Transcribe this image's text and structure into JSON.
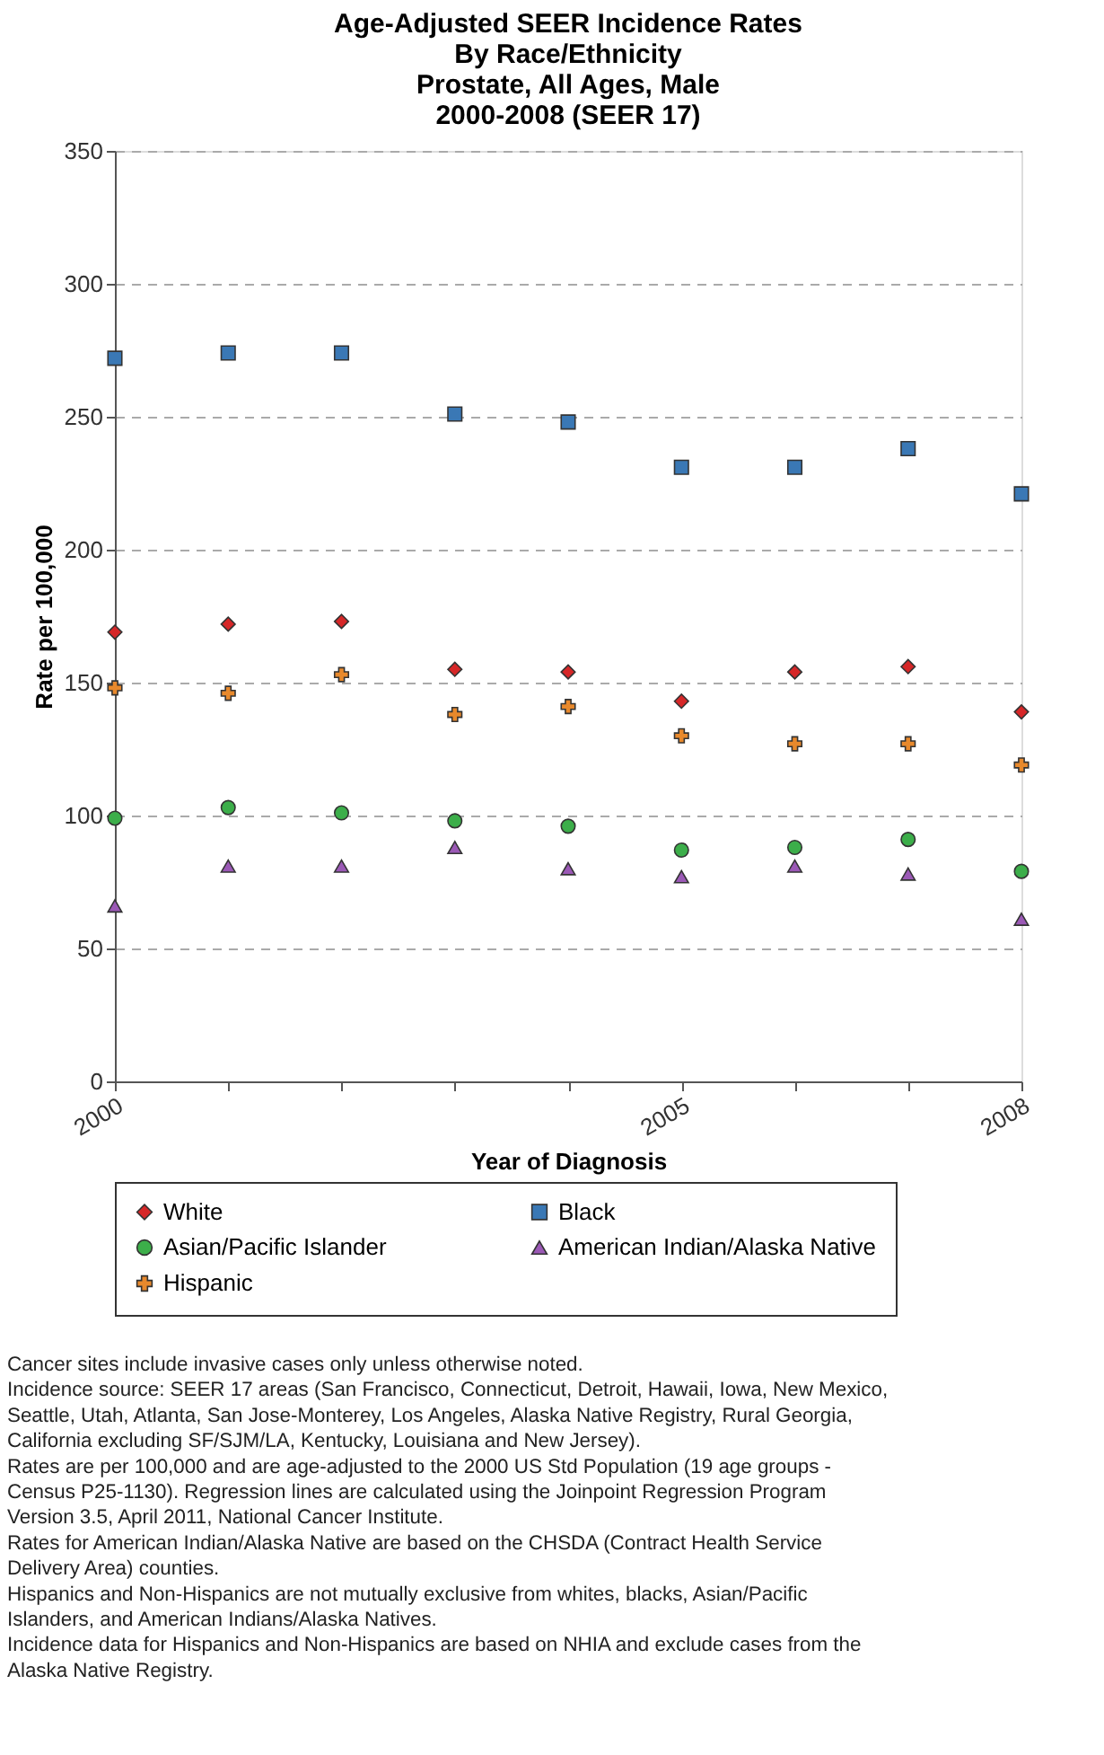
{
  "chart_data": {
    "type": "scatter",
    "title": "Age-Adjusted SEER Incidence Rates\nBy Race/Ethnicity\nProstate, All Ages, Male\n2000-2008  (SEER 17)",
    "xlabel": "Year of Diagnosis",
    "ylabel": "Rate per 100,000",
    "x": [
      2000,
      2001,
      2002,
      2003,
      2004,
      2005,
      2006,
      2007,
      2008
    ],
    "series": [
      {
        "name": "White",
        "color": "#d62728",
        "marker": "diamond",
        "values": [
          169,
          172,
          173,
          155,
          154,
          143,
          154,
          156,
          139
        ]
      },
      {
        "name": "Black",
        "color": "#3a78b5",
        "marker": "square",
        "values": [
          272,
          274,
          274,
          251,
          248,
          231,
          231,
          238,
          221
        ]
      },
      {
        "name": "Asian/Pacific Islander",
        "color": "#3cae4a",
        "marker": "circle",
        "values": [
          99,
          103,
          101,
          98,
          96,
          87,
          88,
          91,
          79
        ]
      },
      {
        "name": "American Indian/Alaska Native",
        "color": "#9b59b6",
        "marker": "triangle",
        "values": [
          66,
          81,
          81,
          88,
          80,
          77,
          81,
          78,
          61
        ]
      },
      {
        "name": "Hispanic",
        "color": "#e8892c",
        "marker": "cross",
        "values": [
          148,
          146,
          153,
          138,
          141,
          130,
          127,
          127,
          119
        ]
      }
    ],
    "xlim": [
      2000,
      2008
    ],
    "xticks": [
      2000,
      {
        "value": 2001,
        "label": null
      },
      {
        "value": 2002,
        "label": null
      },
      {
        "value": 2003,
        "label": null
      },
      {
        "value": 2004,
        "label": null
      },
      2005,
      {
        "value": 2006,
        "label": null
      },
      {
        "value": 2007,
        "label": null
      },
      2008
    ],
    "ylim": [
      0,
      350
    ],
    "yticks": [
      0,
      50,
      100,
      150,
      200,
      250,
      300,
      350
    ],
    "grid": "y",
    "legend": "bottom",
    "annotations": [
      "Cancer sites include invasive cases only unless otherwise noted.",
      "Incidence source: SEER 17 areas (San Francisco, Connecticut, Detroit, Hawaii, Iowa, New Mexico,\nSeattle, Utah, Atlanta, San Jose-Monterey, Los Angeles, Alaska Native Registry, Rural Georgia,\nCalifornia excluding SF/SJM/LA, Kentucky, Louisiana and New Jersey).",
      "Rates are per 100,000 and are age-adjusted to the 2000 US Std Population (19 age groups -\nCensus P25-1130). Regression lines are calculated using the Joinpoint Regression Program\nVersion 3.5, April 2011, National Cancer Institute.",
      "Rates for American Indian/Alaska Native are based on the CHSDA (Contract Health Service\nDelivery Area) counties.",
      "Hispanics and Non-Hispanics are not mutually exclusive from whites, blacks, Asian/Pacific\nIslanders, and American Indians/Alaska Natives.",
      "Incidence data for Hispanics and Non-Hispanics are based on NHIA and exclude cases from the\nAlaska Native Registry."
    ]
  }
}
